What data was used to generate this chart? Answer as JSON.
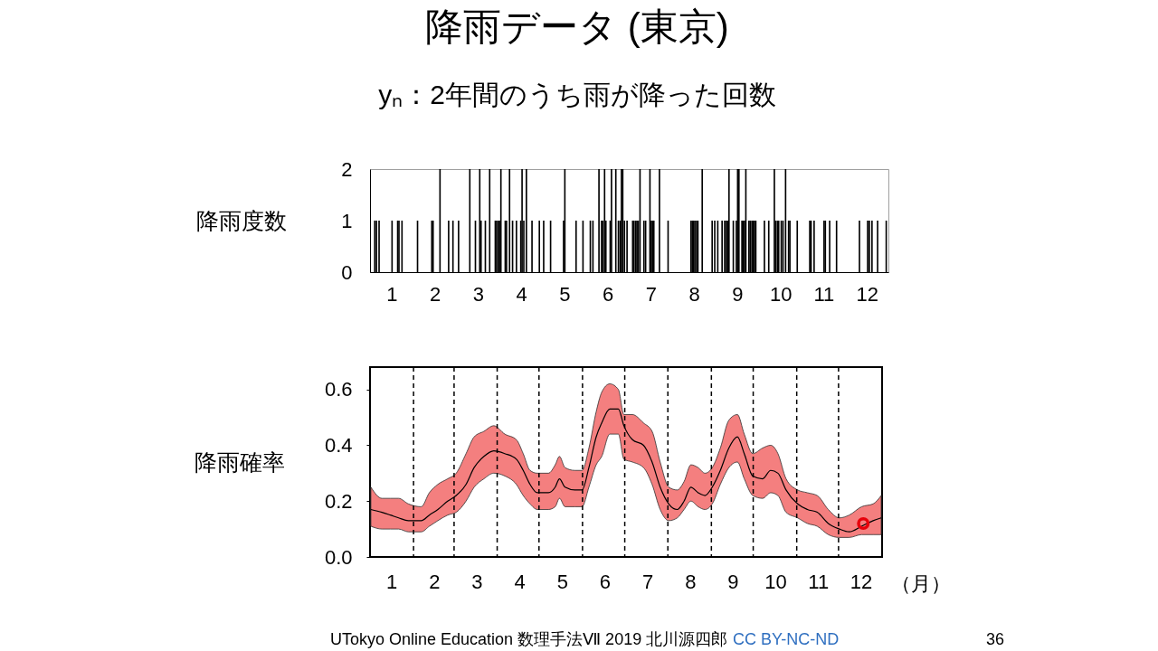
{
  "chart_data": [
    {
      "type": "bar",
      "title": "降雨データ (東京)",
      "subtitle": "yₙ：2年間のうち雨が降った回数",
      "ylabel": "降雨度数",
      "color": "#000000",
      "x": [
        0.61,
        0.65,
        0.71,
        1.01,
        1.14,
        1.17,
        1.24,
        1.6,
        1.93,
        1.96,
        2.12,
        2.32,
        2.42,
        2.55,
        2.81,
        2.94,
        3.04,
        3.07,
        3.17,
        3.27,
        3.4,
        3.43,
        3.47,
        3.5,
        3.53,
        3.63,
        3.66,
        3.73,
        3.8,
        3.89,
        3.99,
        4.02,
        4.06,
        4.12,
        4.25,
        4.42,
        4.52,
        4.68,
        4.98,
        5.01,
        5.27,
        5.43,
        5.6,
        5.66,
        5.8,
        5.86,
        5.89,
        5.93,
        5.96,
        6.06,
        6.09,
        6.19,
        6.25,
        6.29,
        6.32,
        6.35,
        6.39,
        6.45,
        6.58,
        6.61,
        6.65,
        6.68,
        6.71,
        6.75,
        6.84,
        6.88,
        6.98,
        7.01,
        7.04,
        7.07,
        7.2,
        7.4,
        7.93,
        7.96,
        7.99,
        8.02,
        8.06,
        8.09,
        8.19,
        8.42,
        8.48,
        8.55,
        8.65,
        8.71,
        8.75,
        8.78,
        8.81,
        8.91,
        8.98,
        9.01,
        9.04,
        9.11,
        9.14,
        9.17,
        9.2,
        9.27,
        9.3,
        9.34,
        9.37,
        9.4,
        9.43,
        9.63,
        9.73,
        9.86,
        9.89,
        9.93,
        9.96,
        10.02,
        10.06,
        10.12,
        10.19,
        10.22,
        10.39,
        10.68,
        10.71,
        10.78,
        11.01,
        11.04,
        11.14,
        11.3,
        11.83,
        12.02,
        12.06,
        12.12,
        12.25,
        12.45
      ],
      "values": [
        1,
        1,
        1,
        1,
        1,
        1,
        1,
        1,
        1,
        1,
        2,
        1,
        1,
        1,
        2,
        1,
        2,
        1,
        1,
        2,
        1,
        1,
        1,
        1,
        2,
        1,
        1,
        2,
        1,
        1,
        1,
        2,
        1,
        2,
        1,
        1,
        1,
        1,
        1,
        2,
        1,
        1,
        1,
        1,
        2,
        1,
        1,
        2,
        1,
        1,
        2,
        2,
        1,
        1,
        2,
        2,
        1,
        1,
        1,
        1,
        1,
        1,
        1,
        2,
        1,
        1,
        2,
        1,
        1,
        1,
        2,
        1,
        1,
        1,
        1,
        1,
        1,
        1,
        2,
        1,
        1,
        1,
        1,
        1,
        1,
        1,
        2,
        1,
        1,
        2,
        2,
        1,
        1,
        1,
        2,
        1,
        1,
        1,
        1,
        1,
        1,
        1,
        1,
        2,
        1,
        1,
        1,
        1,
        1,
        2,
        1,
        1,
        1,
        1,
        1,
        1,
        1,
        1,
        1,
        1,
        1,
        1,
        1,
        1,
        1,
        1
      ],
      "xlim": [
        0.5,
        12.5
      ],
      "xticks": [
        1,
        2,
        3,
        4,
        5,
        6,
        7,
        8,
        9,
        10,
        11,
        12
      ],
      "ylim": [
        0,
        2
      ],
      "yticks": [
        0,
        1,
        2
      ],
      "grid": false
    },
    {
      "type": "line",
      "ylabel": "降雨確率",
      "xlabel": "（月）",
      "x": [
        0.52,
        0.78,
        0.98,
        1.17,
        1.4,
        1.7,
        1.89,
        2.09,
        2.32,
        2.52,
        2.75,
        2.94,
        3.17,
        3.4,
        3.66,
        3.93,
        4.09,
        4.25,
        4.42,
        4.68,
        4.84,
        4.94,
        5.07,
        5.3,
        5.47,
        5.63,
        5.8,
        5.93,
        6.12,
        6.32,
        6.45,
        6.65,
        6.91,
        7.11,
        7.3,
        7.5,
        7.7,
        7.86,
        8.02,
        8.19,
        8.35,
        8.52,
        8.71,
        8.91,
        9.11,
        9.27,
        9.47,
        9.7,
        9.89,
        10.06,
        10.25,
        10.52,
        10.75,
        10.98,
        11.24,
        11.5,
        11.73,
        12.02,
        12.29,
        12.48
      ],
      "series": [
        {
          "type": "line",
          "color": "#000000",
          "values": [
            0.17,
            0.16,
            0.15,
            0.14,
            0.13,
            0.13,
            0.15,
            0.17,
            0.2,
            0.22,
            0.26,
            0.32,
            0.36,
            0.38,
            0.37,
            0.35,
            0.31,
            0.26,
            0.23,
            0.23,
            0.25,
            0.28,
            0.25,
            0.24,
            0.24,
            0.32,
            0.43,
            0.48,
            0.53,
            0.53,
            0.47,
            0.42,
            0.4,
            0.34,
            0.25,
            0.19,
            0.17,
            0.2,
            0.25,
            0.23,
            0.22,
            0.25,
            0.31,
            0.39,
            0.43,
            0.37,
            0.29,
            0.28,
            0.31,
            0.3,
            0.24,
            0.19,
            0.17,
            0.16,
            0.12,
            0.1,
            0.09,
            0.11,
            0.13,
            0.14
          ],
          "lower": [
            0.11,
            0.1,
            0.1,
            0.1,
            0.09,
            0.09,
            0.11,
            0.13,
            0.15,
            0.16,
            0.2,
            0.25,
            0.28,
            0.3,
            0.29,
            0.26,
            0.22,
            0.19,
            0.17,
            0.17,
            0.18,
            0.21,
            0.18,
            0.18,
            0.18,
            0.25,
            0.33,
            0.36,
            0.44,
            0.44,
            0.35,
            0.34,
            0.32,
            0.26,
            0.17,
            0.13,
            0.14,
            0.17,
            0.2,
            0.18,
            0.17,
            0.19,
            0.26,
            0.32,
            0.34,
            0.28,
            0.22,
            0.21,
            0.23,
            0.22,
            0.16,
            0.14,
            0.12,
            0.11,
            0.08,
            0.07,
            0.07,
            0.08,
            0.08,
            0.08
          ],
          "upper": [
            0.25,
            0.21,
            0.21,
            0.21,
            0.19,
            0.18,
            0.23,
            0.26,
            0.28,
            0.3,
            0.37,
            0.43,
            0.45,
            0.47,
            0.44,
            0.42,
            0.37,
            0.31,
            0.3,
            0.3,
            0.33,
            0.36,
            0.32,
            0.31,
            0.31,
            0.39,
            0.52,
            0.59,
            0.62,
            0.6,
            0.51,
            0.51,
            0.48,
            0.45,
            0.34,
            0.25,
            0.24,
            0.27,
            0.33,
            0.32,
            0.3,
            0.32,
            0.39,
            0.49,
            0.51,
            0.44,
            0.37,
            0.39,
            0.4,
            0.37,
            0.28,
            0.24,
            0.23,
            0.22,
            0.17,
            0.14,
            0.15,
            0.18,
            0.19,
            0.22
          ]
        },
        {
          "type": "scatter",
          "color": "#e8000b",
          "marker": "circle",
          "x": [
            12.06
          ],
          "values": [
            0.12
          ]
        }
      ],
      "xlim": [
        0.5,
        12.5
      ],
      "xticks": [
        1,
        2,
        3,
        4,
        5,
        6,
        7,
        8,
        9,
        10,
        11,
        12
      ],
      "ylim": [
        0,
        0.68
      ],
      "yticks": [
        {
          "value": 0,
          "label": "0.0"
        },
        0.2,
        0.4,
        0.6
      ],
      "grid": false,
      "ref_lines": [
        {
          "axis": "x",
          "value": 1.52,
          "color": "#000000",
          "line_style": "dashed"
        },
        {
          "axis": "x",
          "value": 2.47,
          "color": "#000000",
          "line_style": "dashed"
        },
        {
          "axis": "x",
          "value": 3.48,
          "color": "#000000",
          "line_style": "dashed"
        },
        {
          "axis": "x",
          "value": 4.46,
          "color": "#000000",
          "line_style": "dashed"
        },
        {
          "axis": "x",
          "value": 5.48,
          "color": "#000000",
          "line_style": "dashed"
        },
        {
          "axis": "x",
          "value": 6.47,
          "color": "#000000",
          "line_style": "dashed"
        },
        {
          "axis": "x",
          "value": 7.48,
          "color": "#000000",
          "line_style": "dashed"
        },
        {
          "axis": "x",
          "value": 8.5,
          "color": "#000000",
          "line_style": "dashed"
        },
        {
          "axis": "x",
          "value": 9.48,
          "color": "#000000",
          "line_style": "dashed"
        },
        {
          "axis": "x",
          "value": 10.5,
          "color": "#000000",
          "line_style": "dashed"
        },
        {
          "axis": "x",
          "value": 11.48,
          "color": "#000000",
          "line_style": "dashed"
        }
      ],
      "annotations": [
        "UTokyo Online Education 数理手法Ⅶ 2019 北川源四郎",
        "CC BY-NC-ND",
        "36"
      ]
    }
  ]
}
